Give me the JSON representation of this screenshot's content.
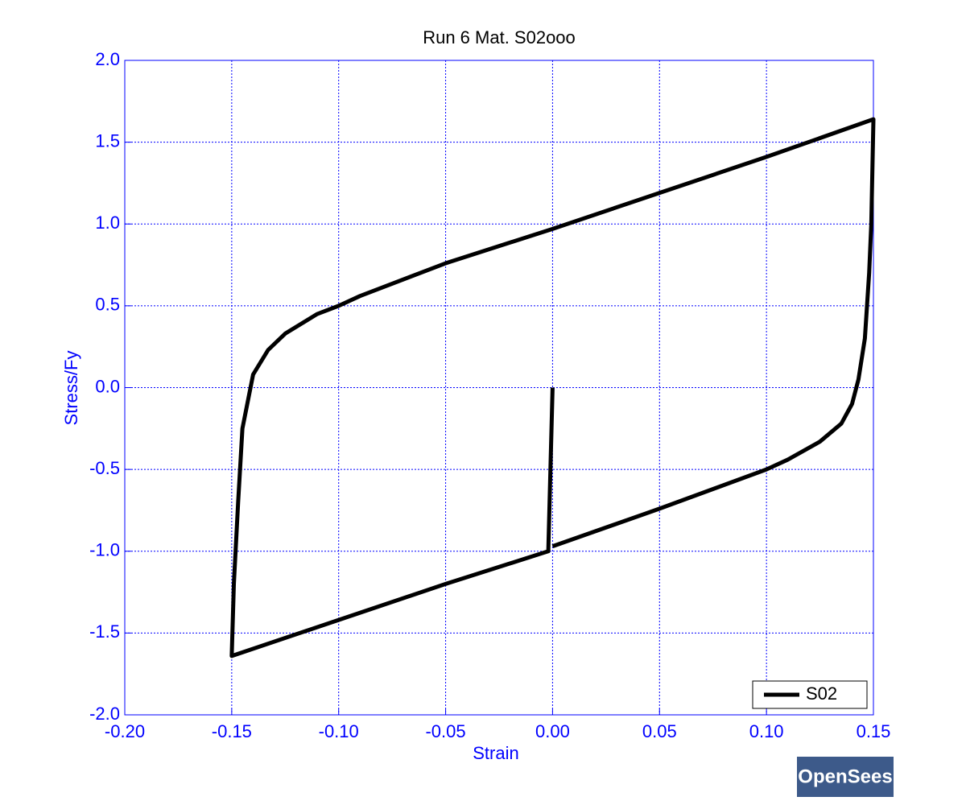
{
  "chart_data": {
    "type": "line",
    "title": "Run 6   Mat. S02ooo",
    "xlabel": "Strain",
    "ylabel": "Stress/Fy",
    "x": [
      0,
      -0.002,
      -0.05,
      -0.1,
      -0.15,
      -0.149,
      -0.147,
      -0.145,
      -0.14,
      -0.133,
      -0.125,
      -0.11,
      -0.1,
      -0.09,
      -0.05,
      0,
      0.05,
      0.1,
      0.15,
      0.149,
      0.148,
      0.146,
      0.143,
      0.14,
      0.135,
      0.125,
      0.11,
      0.1,
      0.05,
      0
    ],
    "series": [
      {
        "name": "S02",
        "color": "#000000",
        "values": [
          0,
          -1.0,
          -1.2,
          -1.42,
          -1.64,
          -1.2,
          -0.7,
          -0.25,
          0.08,
          0.23,
          0.33,
          0.45,
          0.5,
          0.56,
          0.76,
          0.97,
          1.19,
          1.41,
          1.64,
          1.0,
          0.7,
          0.3,
          0.05,
          -0.1,
          -0.22,
          -0.33,
          -0.44,
          -0.5,
          -0.74,
          -0.97
        ]
      }
    ],
    "xlim": [
      -0.2,
      0.15
    ],
    "ylim": [
      -2,
      2
    ],
    "xticks": [
      {
        "value": -0.2,
        "label": "-0.20"
      },
      {
        "value": -0.15,
        "label": "-0.15"
      },
      {
        "value": -0.1,
        "label": "-0.10"
      },
      {
        "value": -0.05,
        "label": "-0.05"
      },
      {
        "value": 0,
        "label": "0.00"
      },
      {
        "value": 0.05,
        "label": "0.05"
      },
      {
        "value": 0.1,
        "label": "0.10"
      },
      {
        "value": 0.15,
        "label": "0.15"
      }
    ],
    "yticks": [
      {
        "value": -2,
        "label": "-2.0"
      },
      {
        "value": -1.5,
        "label": "-1.5"
      },
      {
        "value": -1,
        "label": "-1.0"
      },
      {
        "value": -0.5,
        "label": "-0.5"
      },
      {
        "value": 0,
        "label": "0.0"
      },
      {
        "value": 0.5,
        "label": "0.5"
      },
      {
        "value": 1,
        "label": "1.0"
      },
      {
        "value": 1.5,
        "label": "1.5"
      },
      {
        "value": 2,
        "label": "2.0"
      }
    ],
    "grid": true,
    "legend": "lower right"
  },
  "logo": {
    "text": "OpenSees"
  }
}
